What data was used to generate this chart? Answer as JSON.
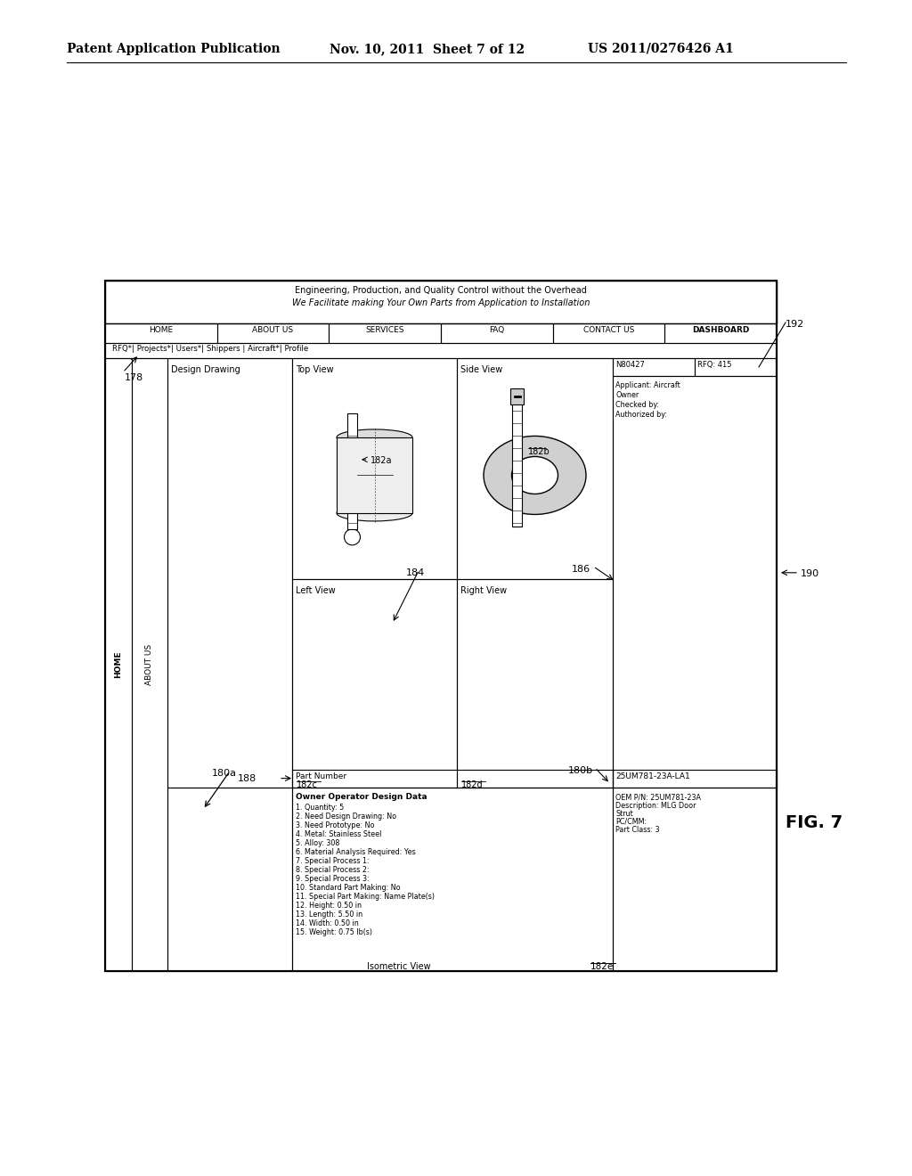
{
  "bg_color": "#ffffff",
  "header_text_left": "Patent Application Publication",
  "header_text_mid": "Nov. 10, 2011  Sheet 7 of 12",
  "header_text_right": "US 2011/0276426 A1",
  "fig_label": "FIG. 7",
  "website_title1": "Engineering, Production, and Quality Control without the Overhead",
  "website_title2": "We Facilitate making Your Own Parts from Application to Installation",
  "nav_items": [
    "HOME",
    "ABOUT US",
    "SERVICES",
    "FAQ",
    "CONTACT US",
    "DASHBOARD"
  ],
  "sub_nav": "RFQ*| Projects*| Users*| Shippers | Aircraft*| Profile",
  "label_178": "178",
  "label_180a": "180a",
  "label_180b": "180b",
  "label_182a": "182a",
  "label_182b": "182b",
  "label_182c": "182c",
  "label_182d": "182d",
  "label_182e": "182e",
  "label_184": "184",
  "label_186": "186",
  "label_188": "188",
  "label_190": "190",
  "label_192": "192",
  "view_top": "Top View",
  "view_side": "Side View",
  "view_left": "Left View",
  "view_right": "Right View",
  "view_iso": "Isometric View",
  "design_drawing": "Design Drawing",
  "data_title": "Owner Operator Design Data",
  "data_lines": [
    "1. Quantity: 5",
    "2. Need Design Drawing: No",
    "3. Need Prototype: No",
    "4. Metal: Stainless Steel",
    "5. Alloy: 308",
    "6. Material Analysis Required: Yes",
    "7. Special Process 1:",
    "8. Special Process 2:",
    "9. Special Process 3:",
    "10. Standard Part Making: No",
    "11. Special Part Making: Name Plate(s)",
    "12. Height: 0.50 in",
    "13. Length: 5.50 in",
    "14. Width: 0.50 in",
    "15. Weight: 0.75 lb(s)"
  ],
  "part_info_lines": [
    "OEM P/N: 25UM781-23A",
    "Description: MLG Door",
    "Strut",
    "PC/CMM:",
    "Part Class: 3"
  ],
  "applicant_lines": [
    "Applicant: Aircraft",
    "Owner",
    "Checked by:",
    "Authorized by:"
  ],
  "part_number_label": "Part Number",
  "part_number_value": "25UM781-23A-LA1",
  "rfq_label": "N80427",
  "rfq_value": "RFQ: 415"
}
